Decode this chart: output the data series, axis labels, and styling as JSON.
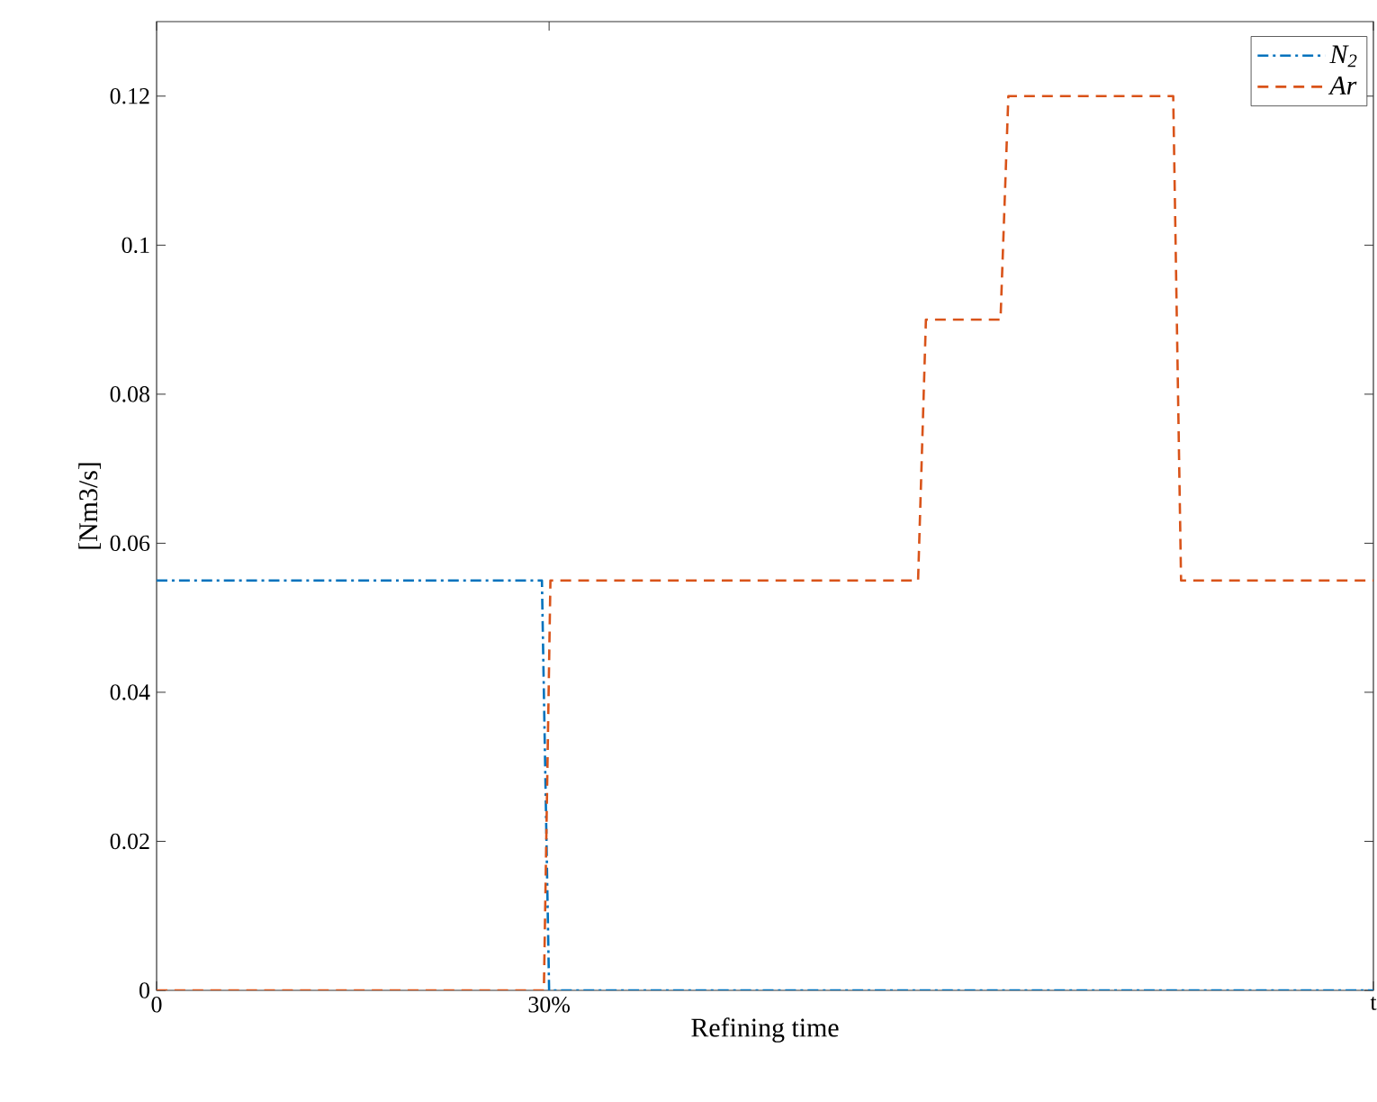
{
  "chart_data": {
    "type": "line",
    "xlabel": "Refining time",
    "ylabel": "[Nm3/s]",
    "xlim": [
      0,
      93
    ],
    "xticks": [
      0,
      {
        "value": 30,
        "label": "30%"
      },
      {
        "value": 93,
        "label": "t"
      }
    ],
    "ylim": [
      0,
      0.13
    ],
    "yticks": [
      0,
      0.02,
      0.04,
      0.06,
      0.08,
      0.1,
      0.12
    ],
    "grid": false,
    "legend": "top right",
    "series": [
      {
        "name": "N$_{2}$",
        "color": "#0072bd",
        "line_style": "dashdot",
        "x": [
          0,
          29.45,
          30,
          93
        ],
        "values": [
          0.055,
          0.055,
          0,
          0
        ]
      },
      {
        "name": "Ar",
        "color": "#d95319",
        "line_style": "dashed",
        "x": [
          0,
          29.6,
          30.1,
          58.2,
          58.8,
          64.5,
          65.1,
          77.7,
          78.3,
          93
        ],
        "values": [
          0,
          0,
          0.055,
          0.055,
          0.09,
          0.09,
          0.12,
          0.12,
          0.055,
          0.055
        ]
      }
    ]
  }
}
